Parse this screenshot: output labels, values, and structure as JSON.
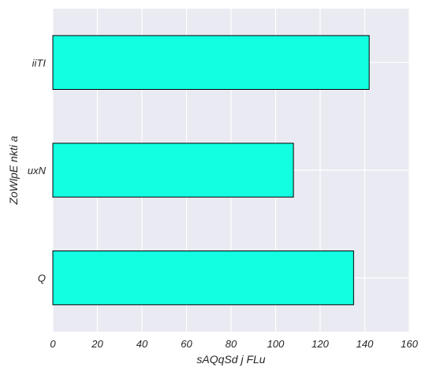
{
  "chart_data": {
    "type": "bar",
    "orientation": "horizontal",
    "categories": [
      "Q",
      "uxN",
      "iiTI"
    ],
    "values": [
      135,
      108,
      142
    ],
    "xlabel": "sAQqSd  j FLu",
    "ylabel": "ZoWlpE nkti a",
    "xlim": [
      0,
      160
    ],
    "xticks": [
      "0",
      "20",
      "40",
      "60",
      "80",
      "100",
      "120",
      "140",
      "160"
    ],
    "grid": true,
    "colors": {
      "bar_fill": "#12ffe2",
      "bar_edge": "#000000",
      "plot_background": "#eaeaf2",
      "grid": "#ffffff"
    }
  }
}
